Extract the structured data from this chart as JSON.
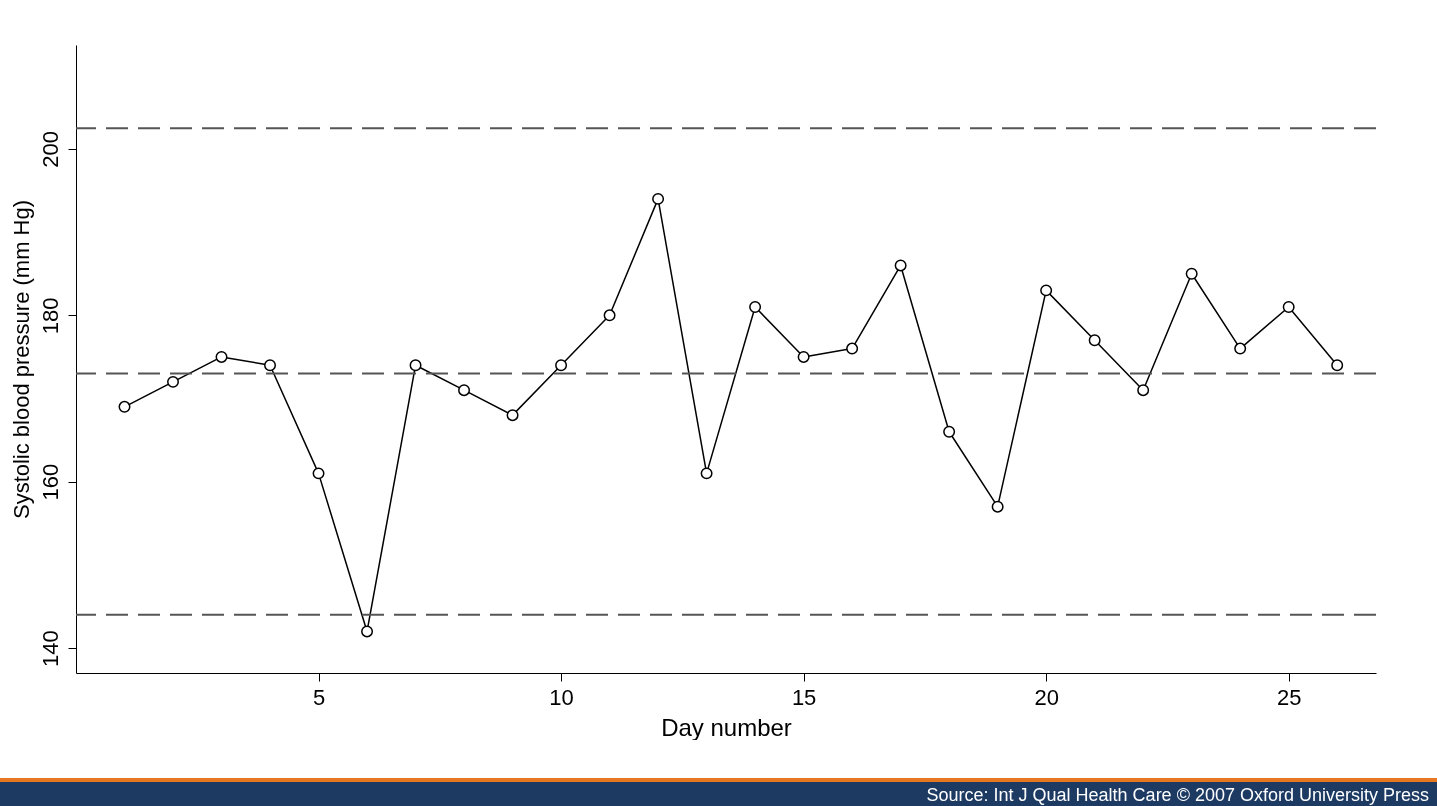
{
  "chart_data": {
    "type": "line",
    "xlabel": "Day number",
    "ylabel": "Systolic blood pressure (mm Hg)",
    "x": [
      1,
      2,
      3,
      4,
      5,
      6,
      7,
      8,
      9,
      10,
      11,
      12,
      13,
      14,
      15,
      16,
      17,
      18,
      19,
      20,
      21,
      22,
      23,
      24,
      25,
      26
    ],
    "series": [
      {
        "color": "#000000",
        "values": [
          169,
          172,
          175,
          174,
          161,
          142,
          174,
          171,
          168,
          174,
          180,
          194,
          161,
          181,
          175,
          176,
          186,
          166,
          157,
          183,
          177,
          171,
          185,
          176,
          181,
          174
        ]
      }
    ],
    "xlim": [
      0,
      26.8
    ],
    "xticks": [
      5,
      10,
      15,
      20,
      25
    ],
    "ylim": [
      137,
      212.5
    ],
    "yticks": [
      140,
      160,
      180,
      200
    ],
    "ref_lines": [
      {
        "axis": "y",
        "value": 202.5,
        "color": "#555555",
        "line_style": "dashed"
      },
      {
        "axis": "y",
        "value": 173,
        "color": "#555555",
        "line_style": "dashed"
      },
      {
        "axis": "y",
        "value": 144,
        "color": "#555555",
        "line_style": "dashed"
      }
    ],
    "annotations": [
      "Source: Int J Qual Health Care © 2007 Oxford University Press"
    ],
    "grid": false,
    "marker": "circle",
    "line_style": "solid"
  }
}
